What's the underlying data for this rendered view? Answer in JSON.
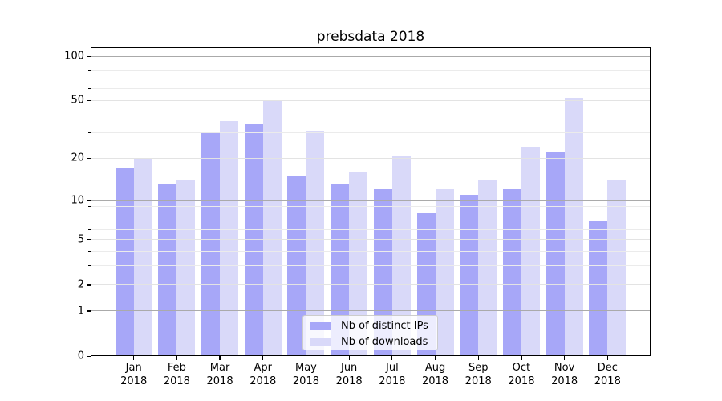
{
  "chart_data": {
    "type": "bar",
    "title": "prebsdata 2018",
    "categories": [
      "Jan",
      "Feb",
      "Mar",
      "Apr",
      "May",
      "Jun",
      "Jul",
      "Aug",
      "Sep",
      "Oct",
      "Nov",
      "Dec"
    ],
    "category_year": "2018",
    "series": [
      {
        "name": "Nb of distinct IPs",
        "color": "#a7a7f8",
        "values": [
          17,
          13,
          30,
          35,
          15,
          13,
          12,
          8,
          11,
          12,
          22,
          7
        ]
      },
      {
        "name": "Nb of downloads",
        "color": "#d9d9f9",
        "values": [
          20,
          14,
          36,
          50,
          31,
          16,
          21,
          12,
          14,
          24,
          52,
          14
        ]
      }
    ],
    "y_scale": "log1p",
    "y_ticks_labeled": [
      0,
      1,
      2,
      5,
      10,
      20,
      50,
      100
    ],
    "y_ticks_decade": [
      1,
      10,
      100
    ],
    "y_ticks_minor": [
      3,
      4,
      6,
      7,
      8,
      9,
      30,
      40,
      60,
      70,
      80,
      90
    ],
    "ylim": [
      0,
      114
    ],
    "grid": true,
    "grid_over_bars": true,
    "legend_position": "lower center",
    "colors": {
      "grid_decade": "#aaaaaa",
      "grid_labeled": "#e3e3e3",
      "grid_minor": "#ebebeb",
      "spine": "#000000",
      "background": "#ffffff"
    }
  }
}
